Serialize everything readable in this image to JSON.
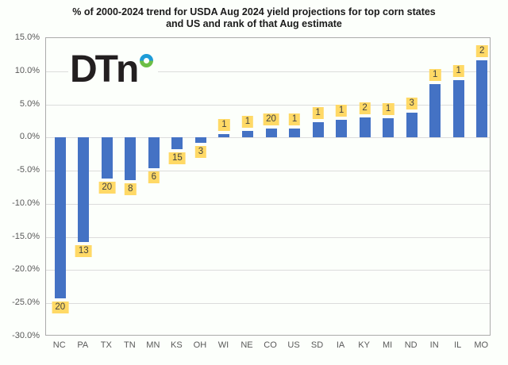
{
  "title_lines": [
    "% of 2000-2024 trend for USDA Aug 2024 yield projections for top corn states",
    "and US and rank of that Aug estimate"
  ],
  "logo": {
    "text": "DTn",
    "text_color": "#231f20",
    "ring_top_color": "#1e9cd7",
    "ring_bottom_color": "#6cbe45"
  },
  "chart_data": {
    "type": "bar",
    "title": "% of 2000-2024 trend for USDA Aug 2024 yield projections for top corn states and US and rank of that Aug estimate",
    "categories": [
      "NC",
      "PA",
      "TX",
      "TN",
      "MN",
      "KS",
      "OH",
      "WI",
      "NE",
      "CO",
      "US",
      "SD",
      "IA",
      "KY",
      "MI",
      "ND",
      "IN",
      "IL",
      "MO"
    ],
    "series": [
      {
        "name": "% of 2000-2024 trend",
        "values": [
          -24.3,
          -15.7,
          -6.2,
          -6.4,
          -4.6,
          -1.8,
          -0.8,
          0.5,
          1.0,
          1.3,
          1.3,
          2.3,
          2.7,
          3.0,
          2.9,
          3.7,
          8.1,
          8.7,
          11.6
        ]
      }
    ],
    "rank_labels": [
      "20",
      "13",
      "20",
      "8",
      "6",
      "15",
      "3",
      "1",
      "1",
      "20",
      "1",
      "1",
      "1",
      "2",
      "1",
      "3",
      "1",
      "1",
      "2"
    ],
    "xlabel": "",
    "ylabel": "",
    "ylim": [
      -30,
      15
    ],
    "y_tick_step": 5,
    "y_tick_labels": [
      "15.0%",
      "10.0%",
      "5.0%",
      "0.0%",
      "-5.0%",
      "-10.0%",
      "-15.0%",
      "-20.0%",
      "-25.0%",
      "-30.0%"
    ],
    "grid": true,
    "legend": false,
    "bar_color": "#4472c4",
    "rank_label_bg": "#ffd966",
    "gridline_color": "#dcdcdc",
    "axis_text_color": "#595959"
  }
}
